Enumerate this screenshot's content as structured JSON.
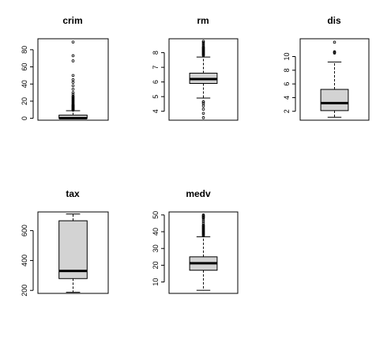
{
  "chart_data": [
    {
      "type": "boxplot",
      "title": "crim",
      "ylim": [
        -2.2,
        92.8
      ],
      "yticks": [
        0,
        20,
        40,
        60,
        80
      ],
      "tick_labels": [
        "0",
        "20",
        "40",
        "60",
        "80"
      ],
      "stats": {
        "lower_whisker": 0.006,
        "q1": 0.08,
        "median": 0.26,
        "q3": 3.7,
        "upper_whisker": 8.9
      },
      "outliers": [
        9.5,
        10,
        10.5,
        11,
        11.5,
        12,
        12.5,
        13,
        13.5,
        14,
        14.5,
        15,
        15.5,
        16,
        17,
        18,
        19,
        20,
        21,
        22,
        23,
        24,
        25,
        26,
        28,
        30,
        34,
        38,
        42,
        45,
        50,
        67,
        73,
        89
      ]
    },
    {
      "type": "boxplot",
      "title": "rm",
      "ylim": [
        3.39,
        8.95
      ],
      "yticks": [
        4,
        5,
        6,
        7,
        8
      ],
      "tick_labels": [
        "4",
        "5",
        "6",
        "7",
        "8"
      ],
      "stats": {
        "lower_whisker": 4.9,
        "q1": 5.9,
        "median": 6.2,
        "q3": 6.6,
        "upper_whisker": 7.7
      },
      "outliers": [
        3.56,
        3.86,
        4.14,
        4.37,
        4.52,
        4.63,
        4.65,
        7.8,
        7.85,
        7.9,
        7.95,
        8.0,
        8.05,
        8.1,
        8.15,
        8.2,
        8.25,
        8.3,
        8.35,
        8.4,
        8.5,
        8.6,
        8.7,
        8.78
      ]
    },
    {
      "type": "boxplot",
      "title": "dis",
      "ylim": [
        0.7,
        12.6
      ],
      "yticks": [
        2,
        4,
        6,
        8,
        10
      ],
      "tick_labels": [
        "2",
        "4",
        "6",
        "8",
        "10"
      ],
      "stats": {
        "lower_whisker": 1.13,
        "q1": 2.1,
        "median": 3.2,
        "q3": 5.2,
        "upper_whisker": 9.2
      },
      "outliers": [
        10.5,
        10.6,
        10.7,
        12.1
      ]
    },
    {
      "type": "boxplot",
      "title": "tax",
      "ylim": [
        180,
        725
      ],
      "yticks": [
        200,
        400,
        600
      ],
      "tick_labels": [
        "200",
        "400",
        "600"
      ],
      "stats": {
        "lower_whisker": 187,
        "q1": 279,
        "median": 330,
        "q3": 666,
        "upper_whisker": 711
      },
      "outliers": []
    },
    {
      "type": "boxplot",
      "title": "medv",
      "ylim": [
        3.2,
        51.8
      ],
      "yticks": [
        10,
        20,
        30,
        40,
        50
      ],
      "tick_labels": [
        "10",
        "20",
        "30",
        "40",
        "50"
      ],
      "stats": {
        "lower_whisker": 5,
        "q1": 17,
        "median": 21.2,
        "q3": 25,
        "upper_whisker": 37
      },
      "outliers": [
        37.5,
        38,
        38.5,
        39,
        39.5,
        40,
        40.5,
        41,
        41.5,
        42,
        42.5,
        43,
        43.5,
        44,
        45,
        46,
        47,
        48,
        48.5,
        49,
        49.5,
        50
      ]
    }
  ]
}
